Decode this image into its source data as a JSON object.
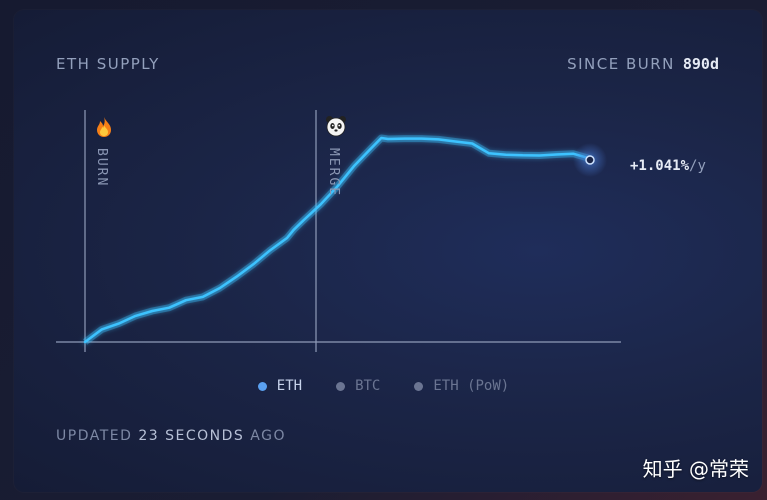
{
  "header": {
    "title": "ETH SUPPLY",
    "since_label": "SINCE BURN",
    "since_value": "890d"
  },
  "annotations": {
    "burn": "BURN",
    "merge": "MERGE",
    "burn_icon": "fire-icon",
    "merge_icon": "panda-icon"
  },
  "rate": {
    "value": "+1.041%",
    "unit": "/y"
  },
  "legend": [
    {
      "label": "ETH",
      "color": "#5aa0f0",
      "active": true
    },
    {
      "label": "BTC",
      "color": "#6b7592",
      "active": false
    },
    {
      "label": "ETH (PoW)",
      "color": "#6b7592",
      "active": false
    }
  ],
  "footer": {
    "prefix": "UPDATED",
    "number": "23",
    "suffix": "SECONDS AGO"
  },
  "watermark": "知乎 @常荣",
  "colors": {
    "line": "#3dc3ff",
    "axis": "#8f9bb8"
  },
  "chart_data": {
    "type": "line",
    "series": [
      {
        "name": "ETH",
        "x": [
          0,
          5,
          10,
          15,
          20,
          25,
          30,
          35,
          40,
          45,
          50,
          55,
          60,
          62,
          65,
          70,
          75,
          80,
          85,
          88,
          90,
          95,
          100,
          105,
          110,
          115,
          120,
          125,
          130,
          135,
          140,
          145,
          150
        ],
        "y": [
          0,
          6.2,
          9.0,
          12.8,
          15.2,
          16.8,
          20.5,
          22.1,
          26.4,
          32.0,
          38.1,
          45.0,
          51.0,
          55.0,
          59.8,
          67.5,
          76.3,
          86.4,
          95.0,
          100,
          99.5,
          99.7,
          99.7,
          99.3,
          98.3,
          97.3,
          92.5,
          91.8,
          91.5,
          91.4,
          91.9,
          92.3,
          89.9
        ]
      }
    ],
    "events": [
      "BURN",
      "MERGE"
    ]
  }
}
